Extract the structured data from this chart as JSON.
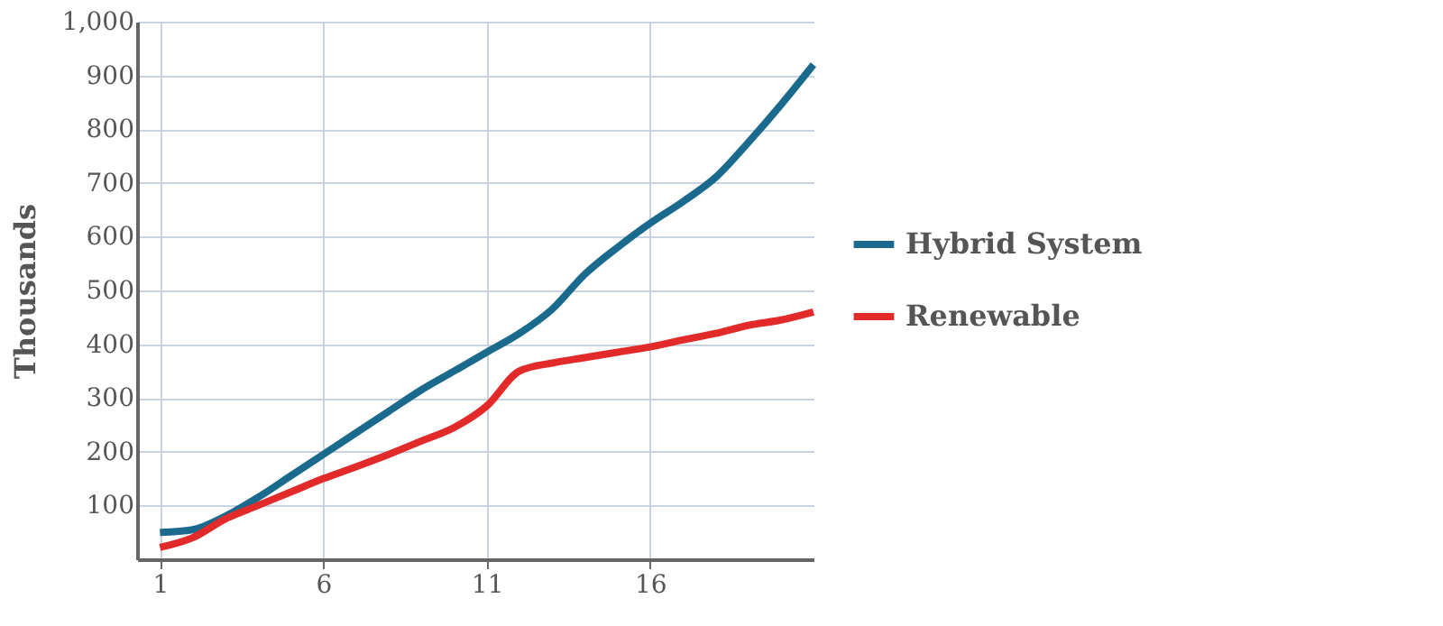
{
  "chart_data": {
    "type": "line",
    "ylabel": "Thousands",
    "x": [
      1,
      2,
      3,
      4,
      5,
      6,
      7,
      8,
      9,
      10,
      11,
      12,
      13,
      14,
      15,
      16,
      17,
      18,
      19,
      20,
      21
    ],
    "series": [
      {
        "name": "Hybrid System",
        "color": "#1a6a8e",
        "values": [
          50,
          55,
          80,
          115,
          155,
          195,
          235,
          275,
          315,
          350,
          385,
          420,
          465,
          530,
          580,
          625,
          665,
          710,
          775,
          845,
          920
        ]
      },
      {
        "name": "Renewable",
        "color": "#e32a2a",
        "values": [
          22,
          40,
          75,
          100,
          125,
          150,
          172,
          195,
          220,
          245,
          285,
          350,
          365,
          375,
          385,
          395,
          408,
          420,
          435,
          445,
          460
        ]
      }
    ],
    "xlim": [
      0.3,
      21
    ],
    "xticks": [
      1,
      6,
      11,
      16
    ],
    "ylim": [
      0,
      1000
    ],
    "yticks": [
      100,
      200,
      300,
      400,
      500,
      600,
      700,
      800,
      900,
      {
        "value": 1000,
        "label": "1,000"
      }
    ],
    "grid": true,
    "legend": "right",
    "line_style": "solid",
    "marker": "none"
  }
}
